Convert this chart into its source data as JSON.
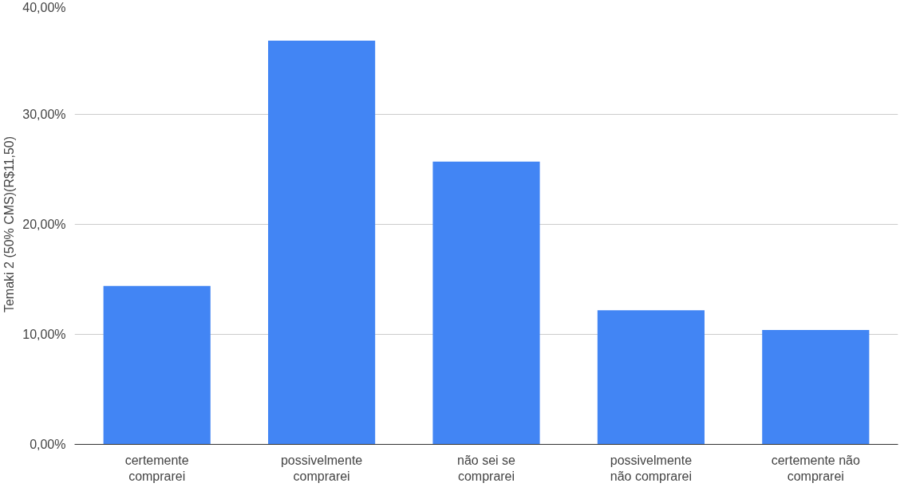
{
  "chart_data": {
    "type": "bar",
    "ylabel": "Temaki 2 (50% CMS)(R$11,50)",
    "categories": [
      "certemente comprarei",
      "possivelmente comprarei",
      "não sei se comprarei",
      "possivelmente não comprarei",
      "certemente não comprarei"
    ],
    "values": [
      14.4,
      36.7,
      25.7,
      12.2,
      10.4
    ],
    "color": "#4285f4",
    "ylim": [
      0,
      40
    ],
    "yticks": [
      {
        "value": 0,
        "label": "0,00%"
      },
      {
        "value": 10,
        "label": "10,00%"
      },
      {
        "value": 20,
        "label": "20,00%"
      },
      {
        "value": 30,
        "label": "30,00%"
      },
      {
        "value": 40,
        "label": "40,00%"
      }
    ],
    "grid": "y"
  }
}
